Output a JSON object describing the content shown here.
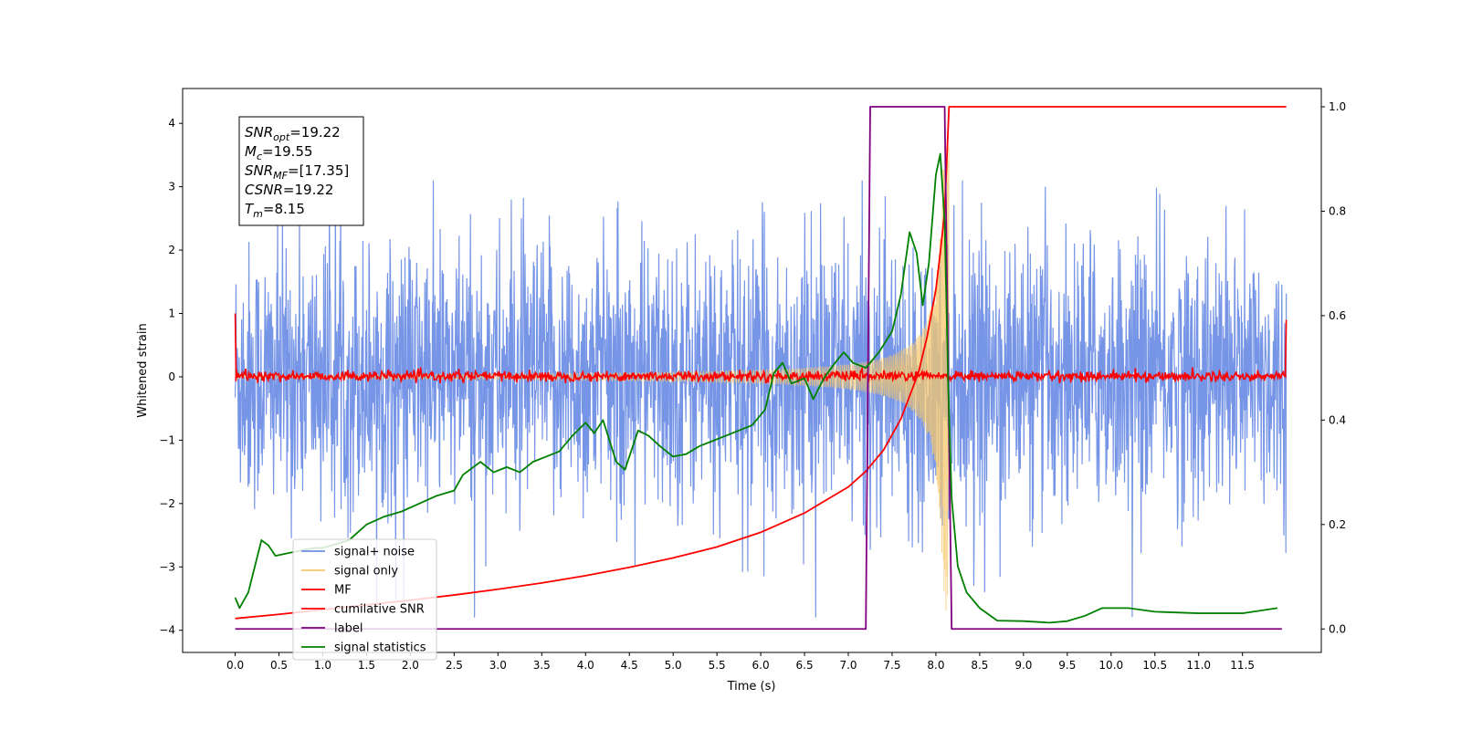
{
  "chart_data": {
    "type": "line",
    "xlabel": "Time (s)",
    "ylabel": "Whitened strain",
    "xlim": [
      -0.6,
      12.4
    ],
    "ylim_left": [
      -4.35,
      4.55
    ],
    "ylim_right": [
      -0.045,
      1.035
    ],
    "x_ticks": [
      0.0,
      0.5,
      1.0,
      1.5,
      2.0,
      2.5,
      3.0,
      3.5,
      4.0,
      4.5,
      5.0,
      5.5,
      6.0,
      6.5,
      7.0,
      7.5,
      8.0,
      8.5,
      9.0,
      9.5,
      10.0,
      10.5,
      11.0,
      11.5
    ],
    "x_tick_labels": [
      "0.0",
      "0.5",
      "1.0",
      "1.5",
      "2.0",
      "2.5",
      "3.0",
      "3.5",
      "4.0",
      "4.5",
      "5.0",
      "5.5",
      "6.0",
      "6.5",
      "7.0",
      "7.5",
      "8.0",
      "8.5",
      "9.0",
      "9.5",
      "10.0",
      "10.5",
      "11.0",
      "11.5"
    ],
    "y_left_ticks": [
      -4,
      -3,
      -2,
      -1,
      0,
      1,
      2,
      3,
      4
    ],
    "y_left_tick_labels": [
      "−4",
      "−3",
      "−2",
      "−1",
      "0",
      "1",
      "2",
      "3",
      "4"
    ],
    "y_right_ticks": [
      0.0,
      0.2,
      0.4,
      0.6,
      0.8,
      1.0
    ],
    "y_right_tick_labels": [
      "0.0",
      "0.2",
      "0.4",
      "0.6",
      "0.8",
      "1.0"
    ],
    "legend_placement": "lower-left",
    "grid": false,
    "annotation": {
      "lines": [
        {
          "base": "SNR",
          "sub": "opt",
          "value": "=19.22"
        },
        {
          "base": "M",
          "sub": "c",
          "value": "=19.55"
        },
        {
          "base": "SNR",
          "sub": "MF",
          "value": "=[17.35]"
        },
        {
          "base": "CSNR",
          "sub": "",
          "value": "=19.22"
        },
        {
          "base": "T",
          "sub": "m",
          "value": "=8.15"
        }
      ]
    },
    "series": [
      {
        "name": "signal+ noise",
        "axis": "left",
        "color": "#6f8fe5",
        "kind": "noise",
        "x_range": [
          0.0,
          12.0
        ],
        "amplitude_range": [
          -3.8,
          3.1
        ]
      },
      {
        "name": "signal only",
        "axis": "left",
        "color": "#f5c86e",
        "kind": "chirp",
        "x_range": [
          0.0,
          8.15
        ],
        "peak_amplitude": 3.8
      },
      {
        "name": "MF",
        "axis": "left",
        "color": "#ff0000",
        "kind": "noise-small",
        "x_range": [
          0.0,
          12.0
        ],
        "amplitude_range": [
          -0.1,
          0.15
        ],
        "edge_values": [
          1.0,
          0.9
        ]
      },
      {
        "name": "cumilative SNR",
        "axis": "right",
        "color": "#ff0000",
        "x": [
          0.0,
          0.5,
          1.0,
          1.5,
          2.0,
          2.5,
          3.0,
          3.5,
          4.0,
          4.5,
          5.0,
          5.5,
          6.0,
          6.5,
          7.0,
          7.2,
          7.4,
          7.6,
          7.8,
          7.9,
          8.0,
          8.05,
          8.1,
          8.15,
          12.0
        ],
        "y": [
          0.02,
          0.028,
          0.037,
          0.046,
          0.055,
          0.065,
          0.076,
          0.088,
          0.102,
          0.118,
          0.136,
          0.157,
          0.185,
          0.222,
          0.272,
          0.302,
          0.342,
          0.402,
          0.49,
          0.56,
          0.65,
          0.72,
          0.8,
          1.0,
          1.0
        ]
      },
      {
        "name": "label",
        "axis": "right",
        "color": "#800080",
        "x": [
          0.0,
          7.2,
          7.25,
          8.1,
          8.18,
          11.95
        ],
        "y": [
          0.0,
          0.0,
          1.0,
          1.0,
          0.0,
          0.0
        ]
      },
      {
        "name": "signal statistics",
        "axis": "right",
        "color": "#008000",
        "x": [
          0.0,
          0.05,
          0.15,
          0.3,
          0.38,
          0.46,
          0.6,
          0.75,
          0.9,
          1.0,
          1.1,
          1.3,
          1.5,
          1.7,
          1.9,
          2.1,
          2.3,
          2.5,
          2.6,
          2.8,
          2.95,
          3.1,
          3.25,
          3.4,
          3.55,
          3.7,
          3.85,
          4.0,
          4.1,
          4.2,
          4.35,
          4.45,
          4.6,
          4.72,
          4.85,
          5.0,
          5.15,
          5.3,
          5.45,
          5.6,
          5.75,
          5.9,
          6.05,
          6.15,
          6.25,
          6.35,
          6.5,
          6.6,
          6.72,
          6.85,
          6.95,
          7.05,
          7.2,
          7.35,
          7.5,
          7.6,
          7.7,
          7.78,
          7.85,
          7.92,
          8.0,
          8.05,
          8.1,
          8.14,
          8.18,
          8.25,
          8.35,
          8.5,
          8.7,
          9.0,
          9.3,
          9.5,
          9.7,
          9.9,
          10.2,
          10.5,
          11.0,
          11.5,
          11.9
        ],
        "y": [
          0.06,
          0.04,
          0.07,
          0.17,
          0.16,
          0.14,
          0.145,
          0.15,
          0.155,
          0.155,
          0.16,
          0.17,
          0.2,
          0.215,
          0.225,
          0.24,
          0.255,
          0.265,
          0.295,
          0.32,
          0.3,
          0.31,
          0.3,
          0.32,
          0.33,
          0.34,
          0.37,
          0.395,
          0.375,
          0.4,
          0.32,
          0.305,
          0.38,
          0.37,
          0.35,
          0.33,
          0.335,
          0.35,
          0.36,
          0.37,
          0.38,
          0.39,
          0.42,
          0.49,
          0.51,
          0.47,
          0.48,
          0.44,
          0.48,
          0.51,
          0.53,
          0.51,
          0.5,
          0.53,
          0.57,
          0.64,
          0.76,
          0.72,
          0.62,
          0.7,
          0.87,
          0.91,
          0.78,
          0.47,
          0.25,
          0.12,
          0.07,
          0.04,
          0.016,
          0.015,
          0.012,
          0.015,
          0.025,
          0.04,
          0.04,
          0.033,
          0.03,
          0.03,
          0.04
        ]
      }
    ]
  }
}
